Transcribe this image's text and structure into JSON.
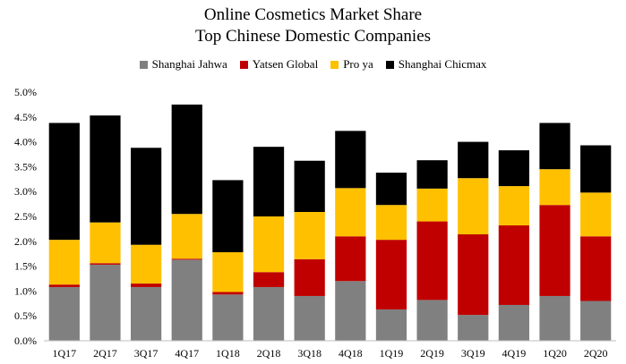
{
  "chart_data": {
    "type": "bar",
    "stacked": true,
    "title": "Online Cosmetics Market Share",
    "subtitle": "Top Chinese Domestic Companies",
    "categories": [
      "1Q17",
      "2Q17",
      "3Q17",
      "4Q17",
      "1Q18",
      "2Q18",
      "3Q18",
      "4Q18",
      "1Q19",
      "2Q19",
      "3Q19",
      "4Q19",
      "1Q20",
      "2Q20"
    ],
    "series": [
      {
        "name": "Shanghai Jahwa",
        "color": "#808080",
        "values": [
          1.08,
          1.53,
          1.08,
          1.63,
          0.93,
          1.08,
          0.9,
          1.2,
          0.63,
          0.82,
          0.52,
          0.72,
          0.9,
          0.8
        ]
      },
      {
        "name": "Yatsen Global",
        "color": "#c00000",
        "values": [
          0.05,
          0.03,
          0.07,
          0.02,
          0.05,
          0.3,
          0.74,
          0.9,
          1.4,
          1.58,
          1.62,
          1.6,
          1.83,
          1.3
        ]
      },
      {
        "name": "Proya",
        "color": "#ffc000",
        "values": [
          0.9,
          0.82,
          0.78,
          0.9,
          0.8,
          1.12,
          0.95,
          0.97,
          0.7,
          0.66,
          1.13,
          0.79,
          0.72,
          0.88
        ]
      },
      {
        "name": "Shanghai Chicmax",
        "color": "#000000",
        "values": [
          2.35,
          2.15,
          1.95,
          2.2,
          1.45,
          1.4,
          1.03,
          1.15,
          0.65,
          0.57,
          0.73,
          0.72,
          0.93,
          0.95
        ]
      }
    ],
    "legend_labels": [
      "Shanghai Jahwa",
      "Yatsen Global",
      "Pro ya",
      "Shanghai Chicmax"
    ],
    "ylim": [
      0,
      5.0
    ],
    "yticks": [
      "0.0%",
      "0.5%",
      "1.0%",
      "1.5%",
      "2.0%",
      "2.5%",
      "3.0%",
      "3.5%",
      "4.0%",
      "4.5%",
      "5.0%"
    ],
    "grid": false,
    "legend_position": "top"
  }
}
